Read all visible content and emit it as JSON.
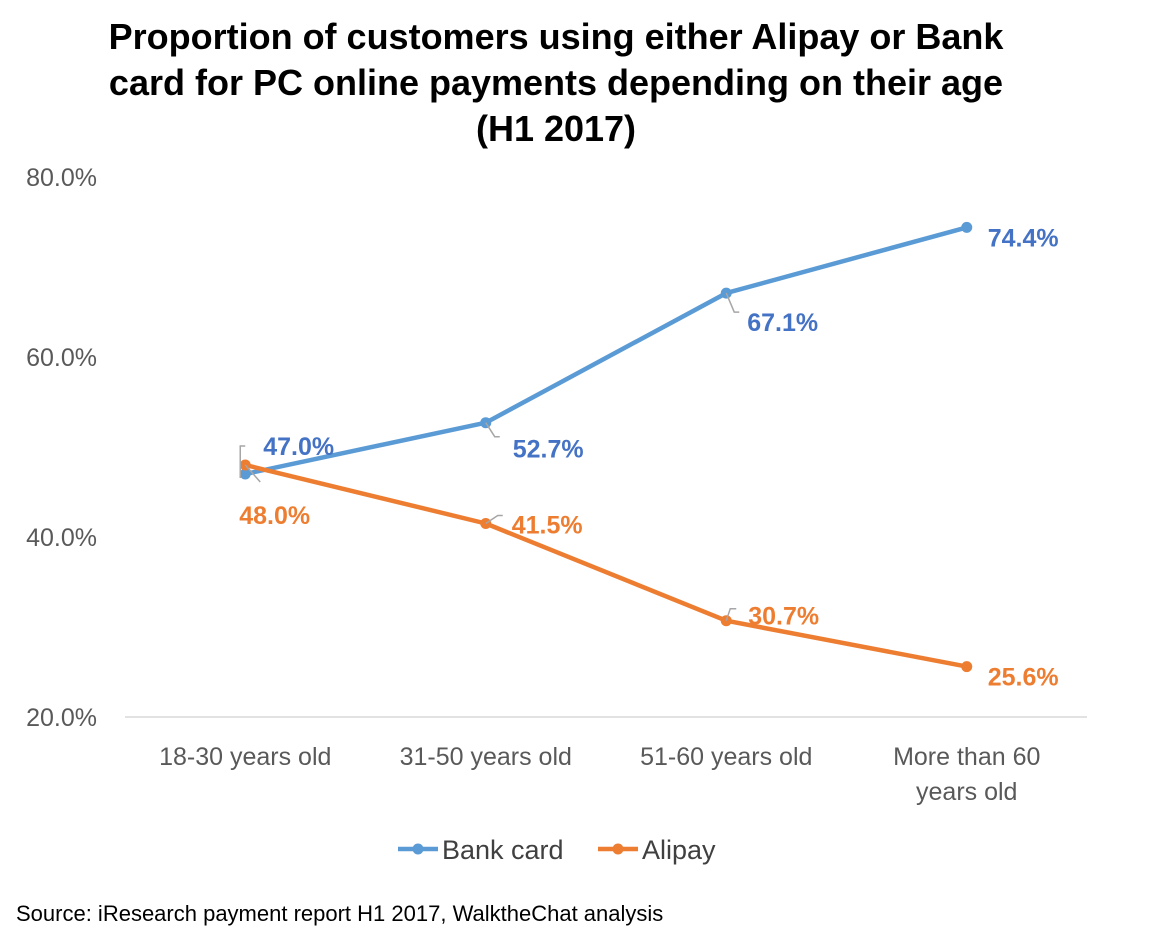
{
  "title_lines": [
    "Proportion of customers using either Alipay or Bank",
    "card for PC online payments depending on their age",
    "(H1 2017)"
  ],
  "source": "Source: iResearch payment report H1 2017, WalktheChat analysis",
  "chart_data": {
    "type": "line",
    "categories": [
      [
        "18-30 years old"
      ],
      [
        "31-50 years old"
      ],
      [
        "51-60 years old"
      ],
      [
        "More than 60",
        "years old"
      ]
    ],
    "ylim": [
      20,
      80
    ],
    "yticks": [
      20,
      40,
      60,
      80
    ],
    "ytick_labels": [
      "20.0%",
      "40.0%",
      "60.0%",
      "80.0%"
    ],
    "grid": false,
    "legend_position": "bottom",
    "series": [
      {
        "name": "Bank card",
        "color": "#5B9BD5",
        "label_color": "#4472C4",
        "values": [
          47.0,
          52.7,
          67.1,
          74.4
        ],
        "labels": [
          "47.0%",
          "52.7%",
          "67.1%",
          "74.4%"
        ]
      },
      {
        "name": "Alipay",
        "color": "#ED7D31",
        "label_color": "#ED7D31",
        "values": [
          48.0,
          41.5,
          30.7,
          25.6
        ],
        "labels": [
          "48.0%",
          "41.5%",
          "30.7%",
          "25.6%"
        ]
      }
    ]
  }
}
